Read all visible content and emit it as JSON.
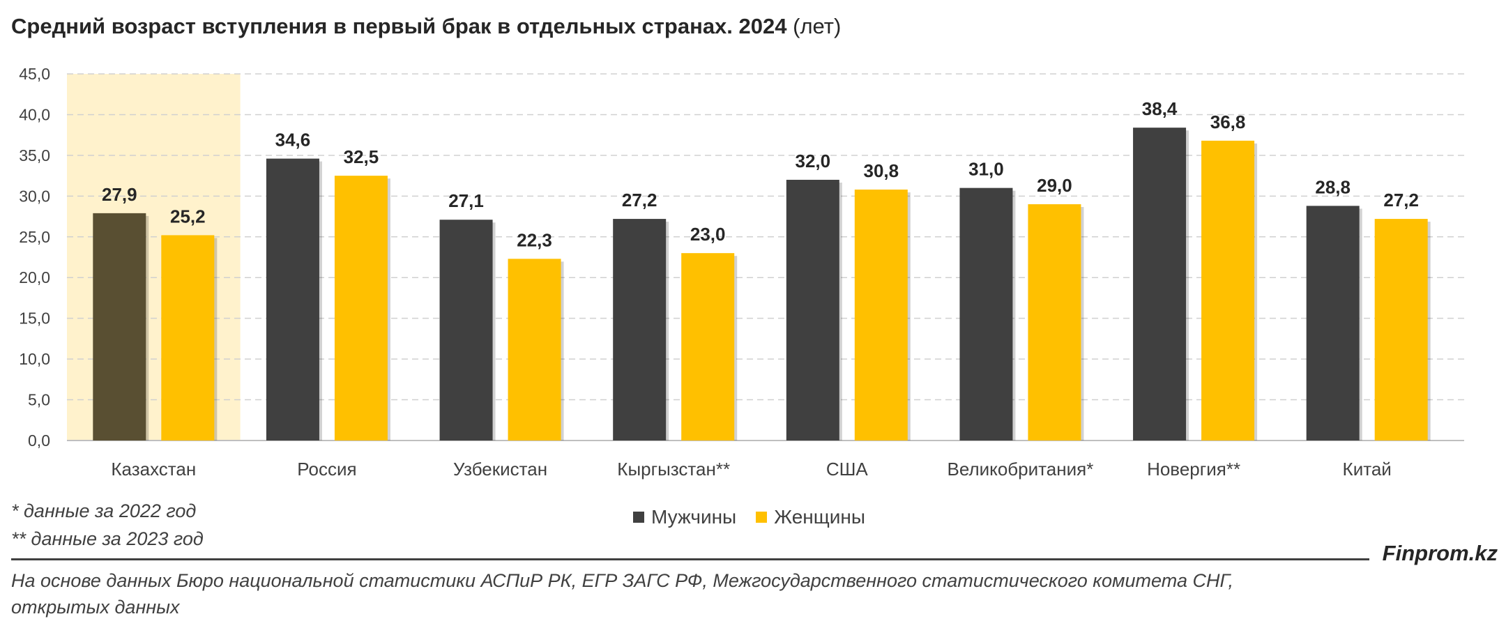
{
  "title": {
    "main": "Средний возраст вступления в первый брак в отдельных странах. 2024",
    "unit": "(лет)"
  },
  "chart_data": {
    "type": "bar",
    "categories": [
      "Казахстан",
      "Россия",
      "Узбекистан",
      "Кыргызстан**",
      "США",
      "Великобритания*",
      "Новергия**",
      "Китай"
    ],
    "series": [
      {
        "name": "Мужчины",
        "values": [
          27.9,
          34.6,
          27.1,
          27.2,
          32.0,
          31.0,
          38.4,
          28.8
        ],
        "labels": [
          "27,9",
          "34,6",
          "27,1",
          "27,2",
          "32,0",
          "31,0",
          "38,4",
          "28,8"
        ],
        "color": "#404040"
      },
      {
        "name": "Женщины",
        "values": [
          25.2,
          32.5,
          22.3,
          23.0,
          30.8,
          29.0,
          36.8,
          27.2
        ],
        "labels": [
          "25,2",
          "32,5",
          "22,3",
          "23,0",
          "30,8",
          "29,0",
          "36,8",
          "27,2"
        ],
        "color": "#FFC000"
      }
    ],
    "highlight": {
      "category": "Казахстан",
      "men_color": "#594F32",
      "band_color": "#FFF2CC"
    },
    "yticks": [
      {
        "value": 0,
        "label": "0,0"
      },
      {
        "value": 5,
        "label": "5,0"
      },
      {
        "value": 10,
        "label": "10,0"
      },
      {
        "value": 15,
        "label": "15,0"
      },
      {
        "value": 20,
        "label": "20,0"
      },
      {
        "value": 25,
        "label": "25,0"
      },
      {
        "value": 30,
        "label": "30,0"
      },
      {
        "value": 35,
        "label": "35,0"
      },
      {
        "value": 40,
        "label": "40,0"
      },
      {
        "value": 45,
        "label": "45,0"
      }
    ],
    "ylim": [
      0,
      45
    ],
    "grid": "dashed horizontal",
    "legend_position": "bottom-center"
  },
  "notes": {
    "note1": "* данные за 2022 год",
    "note2": "** данные за 2023 год"
  },
  "brand": "Finprom.kz",
  "source": {
    "line1": "На основе данных Бюро национальной статистики АСПиР РК, ЕГР ЗАГС РФ, Межгосударственного статистического комитета СНГ,",
    "line2": "открытых данных"
  }
}
